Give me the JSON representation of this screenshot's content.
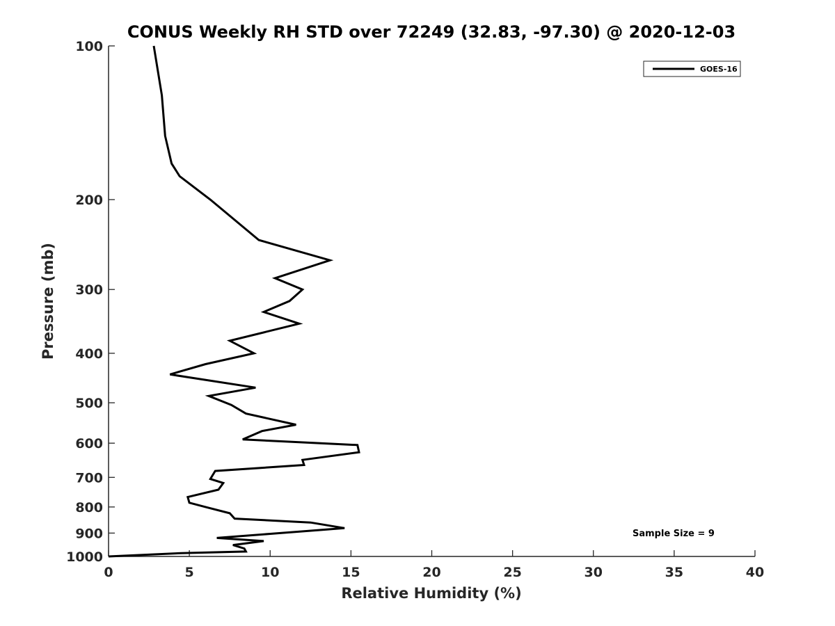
{
  "chart_data": {
    "type": "line",
    "title": "CONUS Weekly RH STD over 72249 (32.83, -97.30) @ 2020-12-03",
    "xlabel": "Relative Humidity (%)",
    "ylabel": "Pressure (mb)",
    "xlim": [
      0,
      40
    ],
    "ylim": [
      100,
      1000
    ],
    "y_scale": "log",
    "y_reversed": true,
    "xticks": [
      "0",
      "5",
      "10",
      "15",
      "20",
      "25",
      "30",
      "35",
      "40"
    ],
    "yticks": [
      "100",
      "200",
      "300",
      "400",
      "500",
      "600",
      "700",
      "800",
      "900",
      "1000"
    ],
    "grid": false,
    "legend_position": "top-right",
    "series": [
      {
        "name": "GOES-16",
        "color": "#000000",
        "points": [
          [
            2.8,
            100
          ],
          [
            3.3,
            125
          ],
          [
            3.5,
            150
          ],
          [
            3.9,
            170
          ],
          [
            4.4,
            180
          ],
          [
            6.3,
            200
          ],
          [
            9.3,
            240
          ],
          [
            13.7,
            263
          ],
          [
            10.3,
            285
          ],
          [
            12.0,
            300
          ],
          [
            11.2,
            316
          ],
          [
            9.6,
            332
          ],
          [
            11.8,
            350
          ],
          [
            7.5,
            378
          ],
          [
            9.0,
            400
          ],
          [
            6.0,
            420
          ],
          [
            3.8,
            440
          ],
          [
            9.1,
            467
          ],
          [
            6.2,
            485
          ],
          [
            7.6,
            505
          ],
          [
            8.5,
            525
          ],
          [
            11.6,
            552
          ],
          [
            9.5,
            568
          ],
          [
            8.3,
            590
          ],
          [
            15.4,
            605
          ],
          [
            15.5,
            625
          ],
          [
            12.0,
            647
          ],
          [
            12.1,
            662
          ],
          [
            6.6,
            680
          ],
          [
            6.3,
            705
          ],
          [
            7.1,
            718
          ],
          [
            6.8,
            740
          ],
          [
            4.9,
            765
          ],
          [
            5.0,
            785
          ],
          [
            6.0,
            800
          ],
          [
            7.5,
            823
          ],
          [
            7.8,
            843
          ],
          [
            12.5,
            858
          ],
          [
            14.6,
            880
          ],
          [
            10.0,
            903
          ],
          [
            6.7,
            920
          ],
          [
            9.6,
            933
          ],
          [
            7.7,
            950
          ],
          [
            8.4,
            965
          ],
          [
            8.5,
            978
          ],
          [
            4.5,
            985
          ],
          [
            0.0,
            1000
          ]
        ]
      }
    ],
    "annotations": [
      "Sample Size = 9"
    ]
  }
}
